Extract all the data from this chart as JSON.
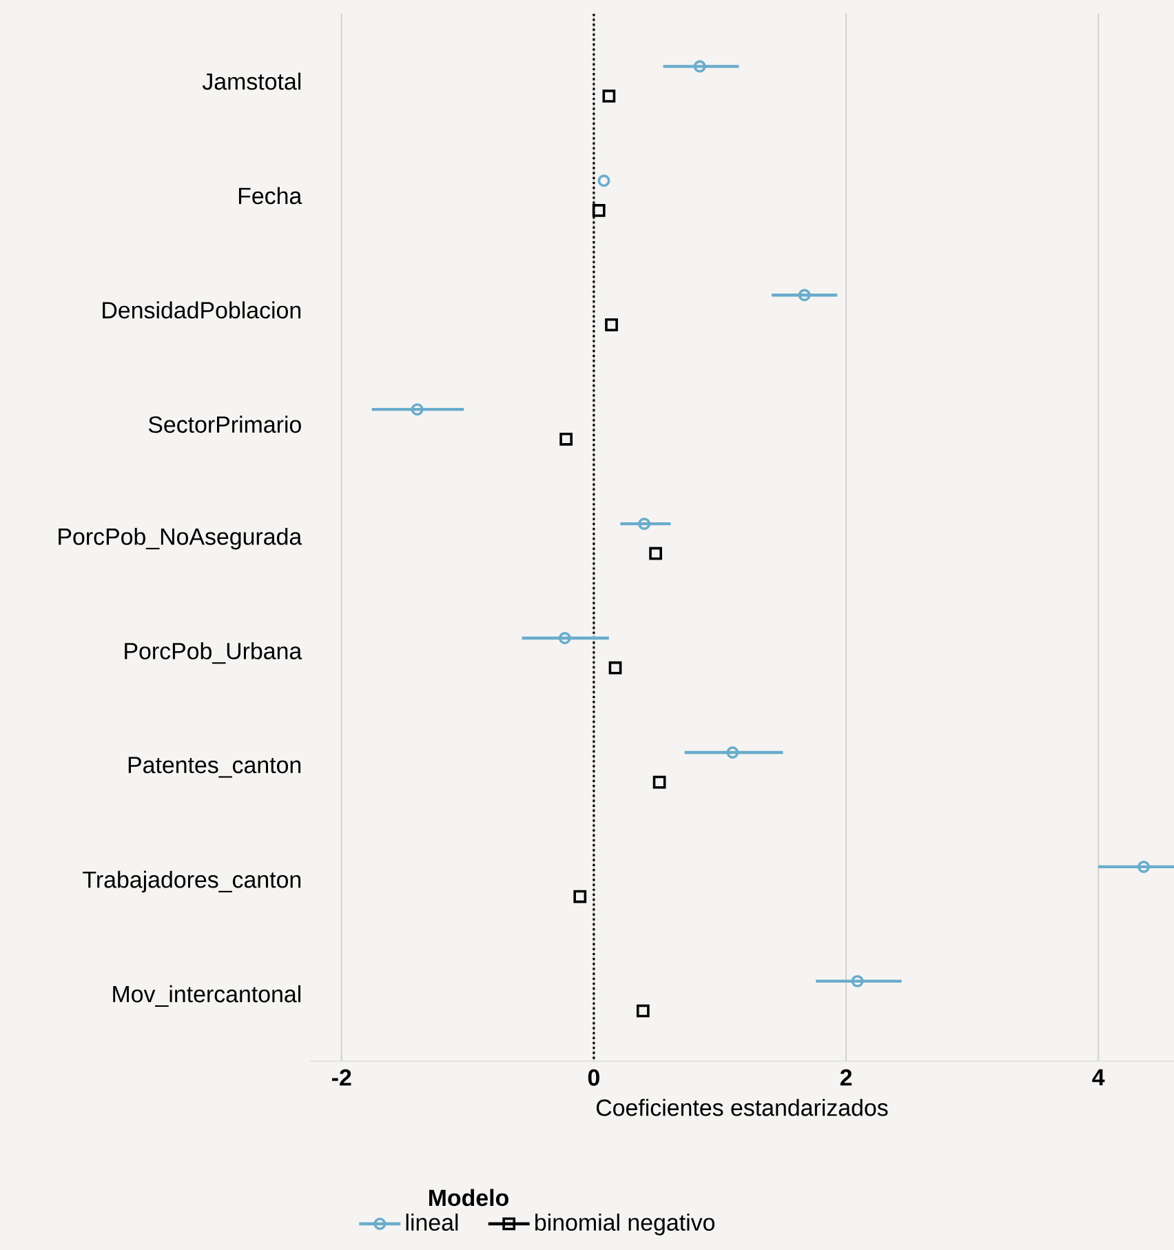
{
  "chart_data": {
    "type": "scatter",
    "orientation": "horizontal",
    "categories": [
      "Jamstotal",
      "Fecha",
      "DensidadPoblacion",
      "SectorPrimario",
      "PorcPob_NoAsegurada",
      "PorcPob_Urbana",
      "Patentes_canton",
      "Trabajadores_canton",
      "Mov_intercantonal"
    ],
    "series": [
      {
        "name": "lineal",
        "color": "#6aaccc",
        "marker": "circle",
        "values": [
          0.84,
          0.08,
          1.67,
          -1.4,
          0.4,
          -0.23,
          1.1,
          4.36,
          2.09
        ],
        "errors": [
          [
            0.55,
            1.15
          ],
          null,
          [
            1.41,
            1.93
          ],
          [
            -1.76,
            -1.03
          ],
          [
            0.21,
            0.61
          ],
          [
            -0.57,
            0.12
          ],
          [
            0.72,
            1.5
          ],
          [
            4.0,
            4.6
          ],
          [
            1.76,
            2.44
          ]
        ]
      },
      {
        "name": "binomial negativo",
        "color": "#000000",
        "marker": "square",
        "values": [
          0.12,
          0.04,
          0.14,
          -0.22,
          0.49,
          0.17,
          0.52,
          -0.11,
          0.39
        ]
      }
    ],
    "xlim": [
      -2.25,
      4.6
    ],
    "xticks": [
      -2,
      0,
      2,
      4
    ],
    "xlabel": "Coeficientes estandarizados",
    "legend_title": "Modelo",
    "legend": "bottom",
    "grid": "x",
    "ref_lines": [
      {
        "axis": "x",
        "value": 0,
        "line_style": "dotted",
        "color": "#000000"
      }
    ]
  }
}
